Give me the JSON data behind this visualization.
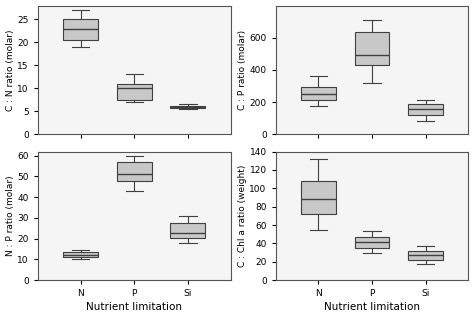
{
  "ylabels": [
    "C : N ratio (molar)",
    "C : P ratio (molar)",
    "N : P ratio (molar)",
    "C : Chl a ratio (weight)"
  ],
  "xlabel": "Nutrient limitation",
  "categories": [
    "N",
    "P",
    "Si"
  ],
  "box_data": {
    "CN": {
      "N": {
        "whislo": 19.0,
        "q1": 20.5,
        "med": 23.0,
        "q3": 25.0,
        "whishi": 27.0
      },
      "P": {
        "whislo": 7.0,
        "q1": 7.5,
        "med": 10.0,
        "q3": 11.0,
        "whishi": 13.0
      },
      "Si": {
        "whislo": 5.5,
        "q1": 5.8,
        "med": 6.0,
        "q3": 6.2,
        "whishi": 6.5
      }
    },
    "CP": {
      "N": {
        "whislo": 175,
        "q1": 210,
        "med": 250,
        "q3": 295,
        "whishi": 360
      },
      "P": {
        "whislo": 320,
        "q1": 430,
        "med": 490,
        "q3": 635,
        "whishi": 710
      },
      "Si": {
        "whislo": 80,
        "q1": 120,
        "med": 155,
        "q3": 185,
        "whishi": 210
      }
    },
    "NP": {
      "N": {
        "whislo": 10.0,
        "q1": 11.0,
        "med": 12.0,
        "q3": 13.5,
        "whishi": 14.5
      },
      "P": {
        "whislo": 43.0,
        "q1": 48.0,
        "med": 51.0,
        "q3": 57.0,
        "whishi": 60.0
      },
      "Si": {
        "whislo": 18.0,
        "q1": 20.5,
        "med": 23.0,
        "q3": 27.5,
        "whishi": 31.0
      }
    },
    "CChl": {
      "N": {
        "whislo": 55,
        "q1": 72,
        "med": 88,
        "q3": 108,
        "whishi": 132
      },
      "P": {
        "whislo": 30,
        "q1": 35,
        "med": 42,
        "q3": 47,
        "whishi": 54
      },
      "Si": {
        "whislo": 18,
        "q1": 22,
        "med": 27,
        "q3": 32,
        "whishi": 37
      }
    }
  },
  "ylims": {
    "CN": [
      0,
      28
    ],
    "CP": [
      0,
      800
    ],
    "NP": [
      0,
      62
    ],
    "CChl": [
      0,
      140
    ]
  },
  "yticks": {
    "CN": [
      0,
      5,
      10,
      15,
      20,
      25
    ],
    "CP": [
      0,
      200,
      400,
      600
    ],
    "NP": [
      0,
      10,
      20,
      30,
      40,
      50,
      60
    ],
    "CChl": [
      0,
      20,
      40,
      60,
      80,
      100,
      120,
      140
    ]
  },
  "box_color": "#c8c8c8",
  "edge_color": "#404040",
  "median_color": "#404040",
  "figsize": [
    4.74,
    3.18
  ],
  "dpi": 100,
  "box_width": 0.65,
  "label_fontsize": 6.5,
  "tick_fontsize": 6.5,
  "xlabel_fontsize": 7.5
}
